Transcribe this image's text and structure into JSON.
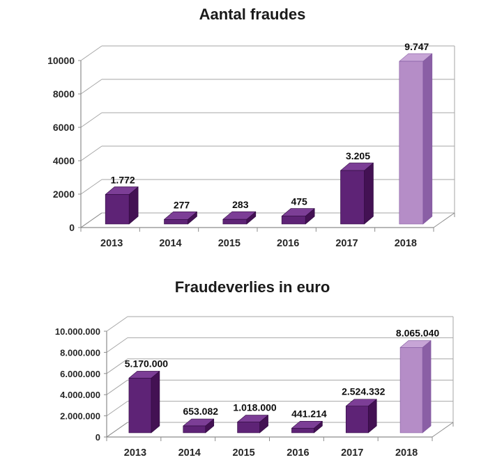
{
  "page": {
    "background": "#ffffff"
  },
  "chart_data": [
    {
      "type": "bar",
      "style": "3d-column",
      "title": "Aantal fraudes",
      "xlabel": "",
      "ylabel": "",
      "categories": [
        "2013",
        "2014",
        "2015",
        "2016",
        "2017",
        "2018"
      ],
      "values": [
        1772,
        277,
        283,
        475,
        3205,
        9747
      ],
      "value_labels": [
        "1.772",
        "277",
        "283",
        "475",
        "3.205",
        "9.747"
      ],
      "y_tick_labels": [
        "0",
        "2000",
        "4000",
        "6000",
        "8000",
        "10000"
      ],
      "ylim": [
        0,
        10000
      ],
      "y_tick_step": 2000,
      "grid": true,
      "legend": "none",
      "value_label_position": "above",
      "bar_styles": [
        "dark",
        "dark",
        "dark",
        "dark",
        "dark",
        "light"
      ]
    },
    {
      "type": "bar",
      "style": "3d-column",
      "title": "Fraudeverlies in euro",
      "xlabel": "",
      "ylabel": "",
      "categories": [
        "2013",
        "2014",
        "2015",
        "2016",
        "2017",
        "2018"
      ],
      "values": [
        5170000,
        653082,
        1018000,
        441214,
        2524332,
        8065040
      ],
      "value_labels": [
        "5.170.000",
        "653.082",
        "1.018.000",
        "441.214",
        "2.524.332",
        "8.065.040"
      ],
      "y_tick_labels": [
        "0",
        "2.000.000",
        "4.000.000",
        "6.000.000",
        "8.000.000",
        "10.000.000"
      ],
      "ylim": [
        0,
        10000000
      ],
      "y_tick_step": 2000000,
      "grid": true,
      "legend": "none",
      "value_label_position": "above",
      "bar_styles": [
        "dark",
        "dark",
        "dark",
        "dark",
        "dark",
        "light"
      ]
    }
  ],
  "colors": {
    "bar_dark": {
      "front": "#5e2376",
      "side": "#431153",
      "top": "#7c3e96",
      "stroke": "#2f0a3f"
    },
    "bar_light": {
      "front": "#b58dc7",
      "side": "#8a5fa5",
      "top": "#c7a5d6",
      "stroke": "#8259a0"
    },
    "gridline": "#a6a6a6",
    "axis": "#8c8c8c",
    "tick_text": "#262626",
    "value_text": "#0d0d0d",
    "title_text": "#1a1a1a",
    "background": "#ffffff"
  }
}
